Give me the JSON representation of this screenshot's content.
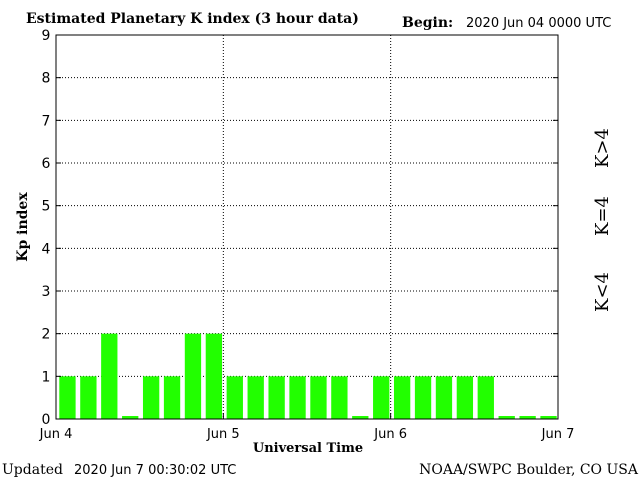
{
  "header": {
    "title": "Estimated Planetary K index (3 hour data)",
    "begin_label": "Begin:",
    "begin_value": "2020 Jun 04 0000 UTC"
  },
  "footer": {
    "updated_label": "Updated",
    "updated_value": "2020 Jun  7 00:30:02 UTC",
    "source": "NOAA/SWPC Boulder, CO USA"
  },
  "legend": {
    "high": {
      "label": "K>4",
      "color": "#ff2a00"
    },
    "mid": {
      "label": "K=4",
      "color": "#ffd700"
    },
    "low": {
      "label": "K<4",
      "color": "#22ee00"
    }
  },
  "chart_data": {
    "type": "bar",
    "title": "Estimated Planetary K index (3 hour data)",
    "xlabel": "Universal Time",
    "ylabel": "Kp index",
    "ylim": [
      0,
      9
    ],
    "yticks": [
      "0",
      "1",
      "2",
      "3",
      "4",
      "5",
      "6",
      "7",
      "8",
      "9"
    ],
    "xticks": [
      "Jun 4",
      "Jun 5",
      "Jun 6",
      "Jun 7"
    ],
    "grid": "dotted",
    "bar_color": "#22ff00",
    "values": [
      1,
      1,
      2,
      0,
      1,
      1,
      2,
      2,
      1,
      1,
      1,
      1,
      1,
      1,
      0,
      1,
      1,
      1,
      1,
      1,
      1,
      0,
      0,
      0
    ]
  }
}
